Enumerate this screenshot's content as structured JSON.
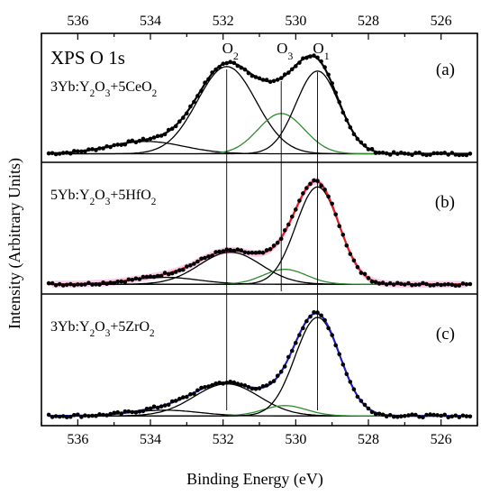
{
  "chart_data": {
    "type": "line",
    "xlabel": "Binding Energy (eV)",
    "ylabel": "Intensity (Arbitrary Units)",
    "xlim": [
      537,
      525
    ],
    "x_ticks": [
      "536",
      "534",
      "532",
      "530",
      "528",
      "526"
    ],
    "x_reversed": true,
    "ref_lines_x": [
      531.9,
      530.4,
      529.4
    ],
    "panels": [
      {
        "id": "a",
        "label": "(a)",
        "title": "XPS O 1s",
        "sample": {
          "a": "3Yb:Y",
          "sub1": "2",
          "b": "O",
          "sub2": "3",
          "c": "+5CeO",
          "sub3": "2"
        },
        "peak_labels": [
          {
            "base": "O",
            "sub": "2",
            "x": 531.9
          },
          {
            "base": "O",
            "sub": "3",
            "x": 530.4
          },
          {
            "base": "O",
            "sub": "1",
            "x": 529.4
          }
        ],
        "fit_color": "#000000",
        "data_color": "#000000",
        "baseline": [
          0.02,
          0.02
        ],
        "peaks": [
          {
            "name": "tail",
            "center": 534.1,
            "fwhm": 2.4,
            "height": 0.11,
            "color": "#000000"
          },
          {
            "name": "O2",
            "center": 531.9,
            "fwhm": 1.9,
            "height": 0.78,
            "color": "#000000"
          },
          {
            "name": "O3",
            "center": 530.4,
            "fwhm": 1.5,
            "height": 0.36,
            "color": "#2e8b2e"
          },
          {
            "name": "O1",
            "center": 529.4,
            "fwhm": 1.4,
            "height": 0.74,
            "color": "#000000"
          }
        ]
      },
      {
        "id": "b",
        "label": "(b)",
        "sample": {
          "a": "5Yb:Y",
          "sub1": "2",
          "b": "O",
          "sub2": "3",
          "c": "+5HfO",
          "sub3": "2"
        },
        "fit_color": "#e02020",
        "data_color": "#000000",
        "band_color": "#f6b8e4",
        "baseline": [
          0.03,
          0.03
        ],
        "peaks": [
          {
            "name": "tail",
            "center": 533.6,
            "fwhm": 2.2,
            "height": 0.06,
            "color": "#000000"
          },
          {
            "name": "O2",
            "center": 531.8,
            "fwhm": 2.0,
            "height": 0.28,
            "color": "#000000"
          },
          {
            "name": "O3",
            "center": 530.3,
            "fwhm": 1.4,
            "height": 0.13,
            "color": "#2e8b2e"
          },
          {
            "name": "O1",
            "center": 529.4,
            "fwhm": 1.4,
            "height": 0.85,
            "color": "#000000"
          }
        ]
      },
      {
        "id": "c",
        "label": "(c)",
        "sample": {
          "a": "3Yb:Y",
          "sub1": "2",
          "b": "O",
          "sub2": "3",
          "c": "+5ZrO",
          "sub3": "2"
        },
        "fit_color": "#2020c0",
        "data_color": "#000000",
        "baseline": [
          0.03,
          0.03
        ],
        "peaks": [
          {
            "name": "tail",
            "center": 533.6,
            "fwhm": 2.2,
            "height": 0.05,
            "color": "#000000"
          },
          {
            "name": "O2",
            "center": 531.9,
            "fwhm": 2.1,
            "height": 0.28,
            "color": "#000000"
          },
          {
            "name": "O3",
            "center": 530.3,
            "fwhm": 1.4,
            "height": 0.09,
            "color": "#2e8b2e"
          },
          {
            "name": "O1",
            "center": 529.4,
            "fwhm": 1.45,
            "height": 0.86,
            "color": "#000000"
          }
        ]
      }
    ]
  }
}
